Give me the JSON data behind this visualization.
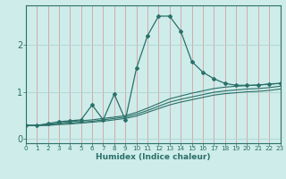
{
  "xlabel": "Humidex (Indice chaleur)",
  "xlim": [
    0,
    23
  ],
  "ylim": [
    -0.1,
    2.85
  ],
  "yticks": [
    0,
    1,
    2
  ],
  "xticks": [
    0,
    1,
    2,
    3,
    4,
    5,
    6,
    7,
    8,
    9,
    10,
    11,
    12,
    13,
    14,
    15,
    16,
    17,
    18,
    19,
    20,
    21,
    22,
    23
  ],
  "xtick_labels": [
    "0",
    "1",
    "2",
    "3",
    "4",
    "5",
    "6",
    "7",
    "8",
    "9",
    "10",
    "11",
    "12",
    "13",
    "14",
    "15",
    "16",
    "17",
    "18",
    "19",
    "20",
    "21",
    "22",
    "23"
  ],
  "bg_color": "#ceecea",
  "line_color": "#2a7068",
  "grid_color": "#b0d4d0",
  "main_x": [
    0,
    1,
    2,
    3,
    4,
    5,
    6,
    7,
    8,
    9,
    10,
    11,
    12,
    13,
    14,
    15,
    16,
    17,
    18,
    19,
    20,
    21,
    22,
    23
  ],
  "main_y": [
    0.28,
    0.28,
    0.32,
    0.36,
    0.38,
    0.4,
    0.72,
    0.4,
    0.95,
    0.4,
    1.5,
    2.2,
    2.62,
    2.62,
    2.3,
    1.65,
    1.42,
    1.28,
    1.18,
    1.14,
    1.14,
    1.14,
    1.17,
    1.18
  ],
  "line2_y": [
    0.28,
    0.28,
    0.3,
    0.33,
    0.36,
    0.38,
    0.4,
    0.43,
    0.46,
    0.49,
    0.56,
    0.65,
    0.75,
    0.85,
    0.91,
    0.97,
    1.02,
    1.07,
    1.1,
    1.12,
    1.13,
    1.15,
    1.16,
    1.18
  ],
  "line3_y": [
    0.28,
    0.28,
    0.29,
    0.31,
    0.33,
    0.35,
    0.37,
    0.4,
    0.43,
    0.46,
    0.52,
    0.6,
    0.69,
    0.78,
    0.84,
    0.89,
    0.94,
    0.99,
    1.02,
    1.04,
    1.06,
    1.07,
    1.09,
    1.12
  ],
  "line4_y": [
    0.28,
    0.28,
    0.28,
    0.3,
    0.31,
    0.33,
    0.35,
    0.37,
    0.4,
    0.43,
    0.48,
    0.56,
    0.64,
    0.72,
    0.78,
    0.83,
    0.88,
    0.93,
    0.96,
    0.98,
    1.0,
    1.01,
    1.03,
    1.06
  ]
}
